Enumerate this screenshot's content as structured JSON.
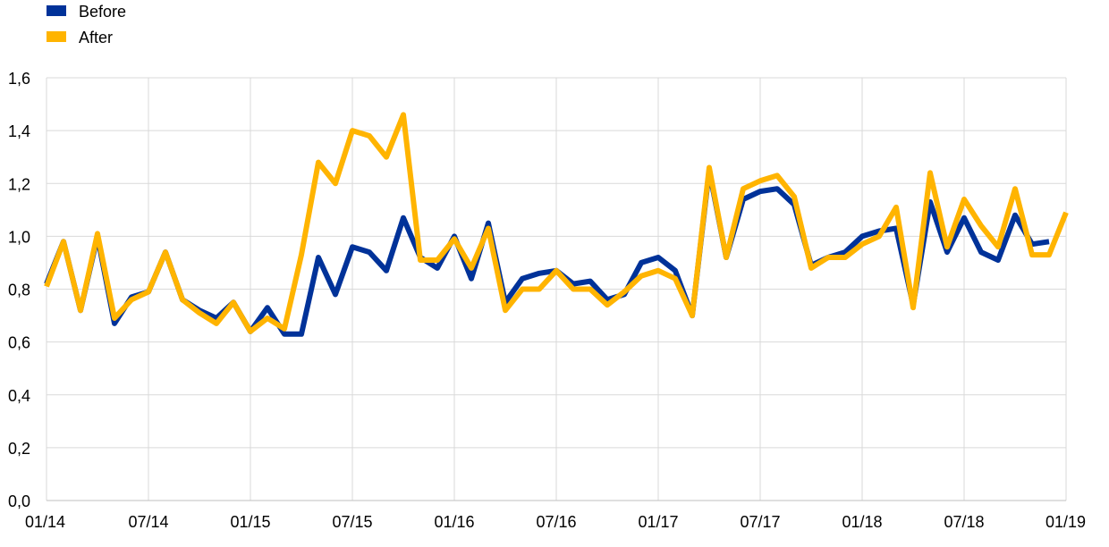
{
  "chart_data": {
    "type": "line",
    "title": "",
    "xlabel": "",
    "ylabel": "",
    "ylim": [
      0,
      1.6
    ],
    "yticks": [
      "0,0",
      "0,2",
      "0,4",
      "0,6",
      "0,8",
      "1,0",
      "1,2",
      "1,4",
      "1,6"
    ],
    "xticks": [
      "01/14",
      "07/14",
      "01/15",
      "07/15",
      "01/16",
      "07/16",
      "01/17",
      "07/17",
      "01/18",
      "07/18",
      "01/19"
    ],
    "x": [
      "01/14",
      "02/14",
      "03/14",
      "04/14",
      "05/14",
      "06/14",
      "07/14",
      "08/14",
      "09/14",
      "10/14",
      "11/14",
      "12/14",
      "01/15",
      "02/15",
      "03/15",
      "04/15",
      "05/15",
      "06/15",
      "07/15",
      "08/15",
      "09/15",
      "10/15",
      "11/15",
      "12/15",
      "01/16",
      "02/16",
      "03/16",
      "04/16",
      "05/16",
      "06/16",
      "07/16",
      "08/16",
      "09/16",
      "10/16",
      "11/16",
      "12/16",
      "01/17",
      "02/17",
      "03/17",
      "04/17",
      "05/17",
      "06/17",
      "07/17",
      "08/17",
      "09/17",
      "10/17",
      "11/17",
      "12/17",
      "01/18",
      "02/18",
      "03/18",
      "04/18",
      "05/18",
      "06/18",
      "07/18",
      "08/18",
      "09/18",
      "10/18",
      "11/18",
      "12/18",
      "01/19"
    ],
    "grid": true,
    "legend_position": "top-left",
    "series": [
      {
        "name": "Before",
        "color": "#003299",
        "values": [
          0.82,
          0.98,
          0.72,
          1.0,
          0.67,
          0.77,
          0.79,
          0.94,
          0.76,
          0.72,
          0.69,
          0.75,
          0.64,
          0.73,
          0.63,
          0.63,
          0.92,
          0.78,
          0.96,
          0.94,
          0.87,
          1.07,
          0.92,
          0.88,
          1.0,
          0.84,
          1.05,
          0.75,
          0.84,
          0.86,
          0.87,
          0.82,
          0.83,
          0.76,
          0.78,
          0.9,
          0.92,
          0.87,
          0.7,
          1.25,
          0.92,
          1.14,
          1.17,
          1.18,
          1.12,
          0.89,
          0.92,
          0.94,
          1.0,
          1.02,
          1.03,
          0.74,
          1.13,
          0.94,
          1.07,
          0.94,
          0.91,
          1.08,
          0.97,
          0.98,
          null
        ]
      },
      {
        "name": "After",
        "color": "#FFB400",
        "values": [
          0.81,
          0.98,
          0.72,
          1.01,
          0.69,
          0.76,
          0.79,
          0.94,
          0.76,
          0.71,
          0.67,
          0.75,
          0.64,
          0.69,
          0.65,
          0.93,
          1.28,
          1.2,
          1.4,
          1.38,
          1.3,
          1.46,
          0.91,
          0.91,
          0.99,
          0.88,
          1.03,
          0.72,
          0.8,
          0.8,
          0.87,
          0.8,
          0.8,
          0.74,
          0.79,
          0.85,
          0.87,
          0.84,
          0.7,
          1.26,
          0.92,
          1.18,
          1.21,
          1.23,
          1.15,
          0.88,
          0.92,
          0.92,
          0.97,
          1.0,
          1.11,
          0.73,
          1.24,
          0.96,
          1.14,
          1.04,
          0.96,
          1.18,
          0.93,
          0.93,
          1.09
        ]
      }
    ]
  }
}
